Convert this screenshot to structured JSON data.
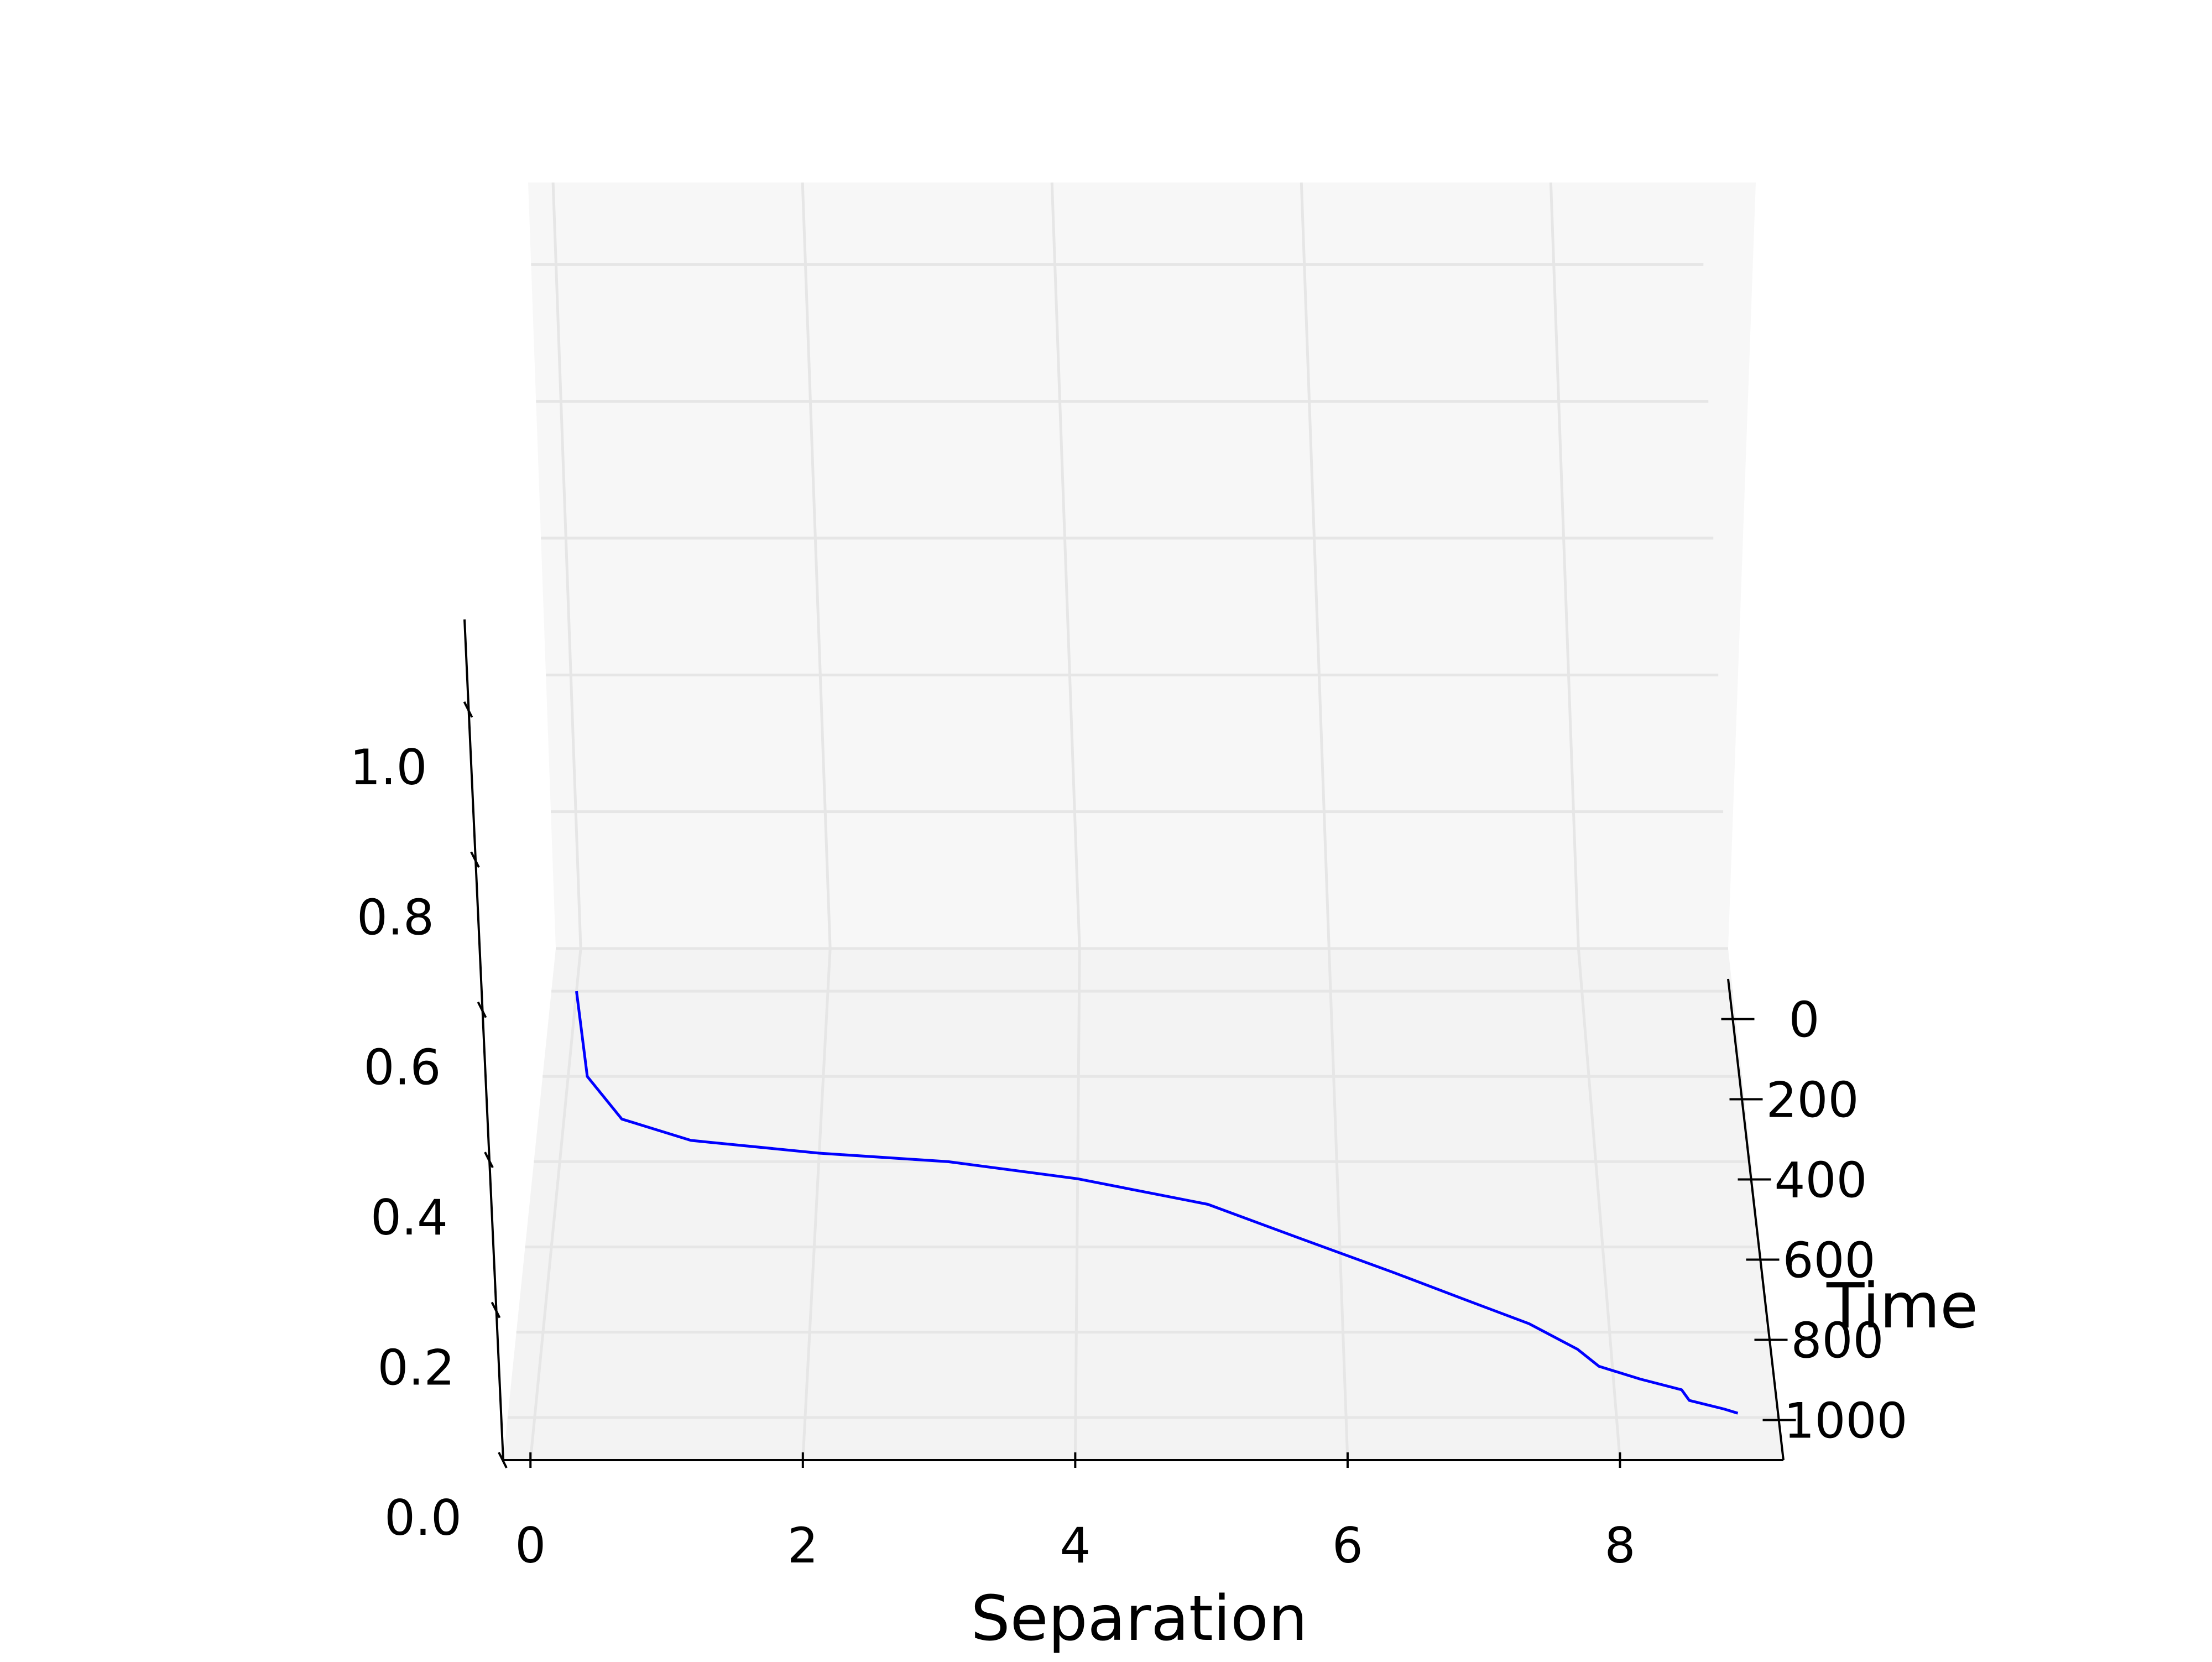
{
  "chart_data": {
    "type": "line",
    "title": "",
    "xlabel": "Separation",
    "ylabel": "Time",
    "zlabel": "",
    "x_ticks": [
      0,
      2,
      4,
      6,
      8
    ],
    "x_tick_labels": [
      "0",
      "2",
      "4",
      "6",
      "8"
    ],
    "y_ticks": [
      0,
      200,
      400,
      600,
      800,
      1000
    ],
    "y_tick_labels": [
      "0",
      "200",
      "400",
      "600",
      "800",
      "1000"
    ],
    "z_ticks": [
      0.0,
      0.2,
      0.4,
      0.6,
      0.8,
      1.0
    ],
    "z_tick_labels": [
      "0.0",
      "0.2",
      "0.4",
      "0.6",
      "0.8",
      "1.0"
    ],
    "xlim": [
      -0.2,
      9.2
    ],
    "ylim": [
      -100,
      1100
    ],
    "zlim": [
      0.0,
      1.12
    ],
    "grid": true,
    "series": [
      {
        "color": "#0000ff",
        "points": [
          [
            0.0,
            0,
            0.0
          ],
          [
            0.15,
            200,
            0.0
          ],
          [
            0.45,
            300,
            0.0
          ],
          [
            1.0,
            350,
            0.0
          ],
          [
            2.0,
            380,
            0.0
          ],
          [
            3.0,
            400,
            0.0
          ],
          [
            4.0,
            440,
            0.0
          ],
          [
            5.0,
            500,
            0.0
          ],
          [
            5.7,
            580,
            0.0
          ],
          [
            6.4,
            660,
            0.0
          ],
          [
            6.9,
            720,
            0.0
          ],
          [
            7.4,
            780,
            0.0
          ],
          [
            7.75,
            840,
            0.0
          ],
          [
            7.9,
            880,
            0.0
          ],
          [
            8.2,
            910,
            0.0
          ],
          [
            8.5,
            935,
            0.0
          ],
          [
            8.55,
            960,
            0.0
          ],
          [
            8.8,
            980,
            0.0
          ],
          [
            8.9,
            990,
            0.0
          ]
        ]
      }
    ]
  },
  "colors": {
    "line": "#0000ff",
    "pane": "#f7f7f7",
    "floor": "#f3f3f3",
    "grid": "#e6e6e6"
  }
}
